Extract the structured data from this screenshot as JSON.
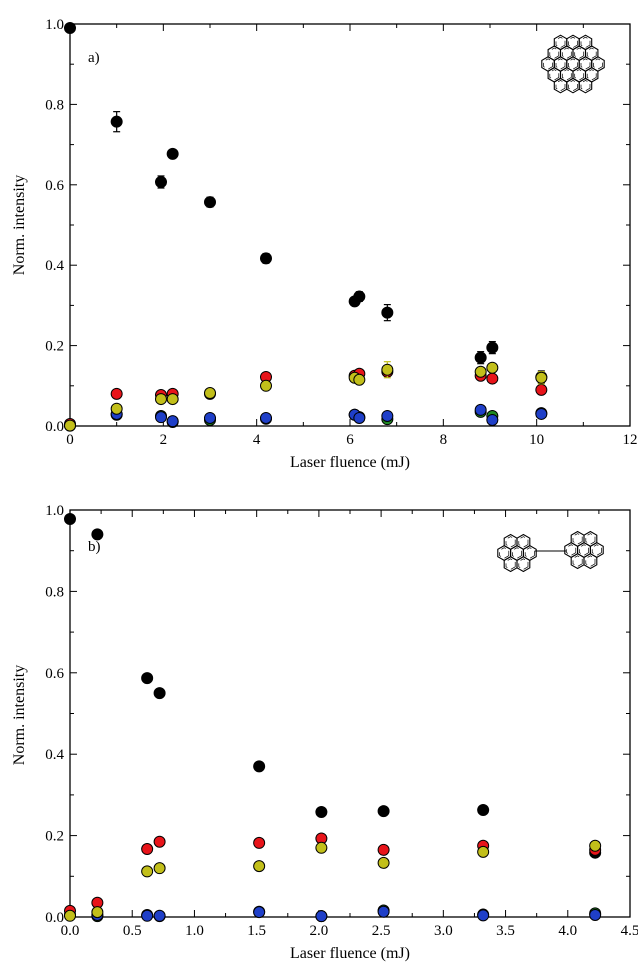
{
  "colors": {
    "black": "#000000",
    "red": "#e8141a",
    "blue": "#1f3fc8",
    "yellow": "#c2bf1a",
    "green": "#1f8a22"
  },
  "chart_data": [
    {
      "type": "scatter",
      "panel_label": "a)",
      "xlabel": "Laser fluence (mJ)",
      "ylabel": "Norm. intensity",
      "xlim": [
        0,
        12
      ],
      "ylim": [
        0,
        1.0
      ],
      "xticks": [
        "0",
        "2",
        "4",
        "6",
        "8",
        "10",
        "12"
      ],
      "yticks": [
        "0.0",
        "0.2",
        "0.4",
        "0.6",
        "0.8",
        "1.0"
      ],
      "grid": false,
      "legend": "none",
      "inset": "molecular structure drawing (top-right)",
      "series": [
        {
          "color": "black",
          "points": [
            [
              0,
              0.99
            ],
            [
              1.0,
              0.757
            ],
            [
              1.95,
              0.607
            ],
            [
              2.2,
              0.677
            ],
            [
              3.0,
              0.557
            ],
            [
              4.2,
              0.417
            ],
            [
              6.1,
              0.31
            ],
            [
              6.2,
              0.322
            ],
            [
              6.8,
              0.282
            ],
            [
              8.8,
              0.17
            ],
            [
              9.05,
              0.195
            ],
            [
              10.1,
              0.122
            ]
          ],
          "errors": [
            0,
            0.025,
            0.015,
            0,
            0.012,
            0.012,
            0,
            0.012,
            0.02,
            0.015,
            0.015,
            0.015
          ]
        },
        {
          "color": "red",
          "points": [
            [
              0,
              0.005
            ],
            [
              1.0,
              0.08
            ],
            [
              1.95,
              0.077
            ],
            [
              2.2,
              0.08
            ],
            [
              3.0,
              0.08
            ],
            [
              4.2,
              0.122
            ],
            [
              6.1,
              0.125
            ],
            [
              6.2,
              0.13
            ],
            [
              6.8,
              0.135
            ],
            [
              8.8,
              0.125
            ],
            [
              9.05,
              0.118
            ],
            [
              10.1,
              0.09
            ]
          ],
          "errors": [
            0,
            0,
            0,
            0,
            0,
            0,
            0,
            0,
            0,
            0.01,
            0.01,
            0
          ]
        },
        {
          "color": "blue",
          "points": [
            [
              0,
              0.002
            ],
            [
              1.0,
              0.03
            ],
            [
              1.95,
              0.022
            ],
            [
              2.2,
              0.012
            ],
            [
              3.0,
              0.02
            ],
            [
              4.2,
              0.02
            ],
            [
              6.1,
              0.028
            ],
            [
              6.2,
              0.02
            ],
            [
              6.8,
              0.025
            ],
            [
              8.8,
              0.04
            ],
            [
              9.05,
              0.015
            ],
            [
              10.1,
              0.03
            ]
          ],
          "errors": [
            0,
            0,
            0,
            0,
            0,
            0,
            0,
            0,
            0,
            0.01,
            0,
            0
          ]
        },
        {
          "color": "yellow",
          "points": [
            [
              0,
              0.001
            ],
            [
              1.0,
              0.043
            ],
            [
              1.95,
              0.067
            ],
            [
              2.2,
              0.067
            ],
            [
              3.0,
              0.082
            ],
            [
              4.2,
              0.1
            ],
            [
              6.1,
              0.12
            ],
            [
              6.2,
              0.115
            ],
            [
              6.8,
              0.14
            ],
            [
              8.8,
              0.135
            ],
            [
              9.05,
              0.145
            ],
            [
              10.1,
              0.12
            ]
          ],
          "errors": [
            0,
            0,
            0,
            0,
            0,
            0,
            0,
            0,
            0.02,
            0.01,
            0,
            0.015
          ]
        },
        {
          "color": "green",
          "points": [
            [
              0,
              0.001
            ],
            [
              1.0,
              0.028
            ],
            [
              1.95,
              0.025
            ],
            [
              2.2,
              0.01
            ],
            [
              3.0,
              0.015
            ],
            [
              4.2,
              0.018
            ],
            [
              6.1,
              0.028
            ],
            [
              6.2,
              0.022
            ],
            [
              6.8,
              0.017
            ],
            [
              8.8,
              0.035
            ],
            [
              9.05,
              0.025
            ],
            [
              10.1,
              0.032
            ]
          ],
          "errors": [
            0,
            0,
            0,
            0,
            0,
            0,
            0,
            0,
            0,
            0,
            0,
            0
          ]
        }
      ]
    },
    {
      "type": "scatter",
      "panel_label": "b)",
      "xlabel": "Laser fluence (mJ)",
      "ylabel": "Norm. intensity",
      "xlim": [
        0,
        4.5
      ],
      "ylim": [
        0,
        1.0
      ],
      "xticks": [
        "0.0",
        "0.5",
        "1.0",
        "1.5",
        "2.0",
        "2.5",
        "3.0",
        "3.5",
        "4.0",
        "4.5"
      ],
      "yticks": [
        "0.0",
        "0.2",
        "0.4",
        "0.6",
        "0.8",
        "1.0"
      ],
      "grid": false,
      "legend": "none",
      "inset": "molecular structure drawing (top-right)",
      "series": [
        {
          "color": "black",
          "points": [
            [
              0.0,
              0.978
            ],
            [
              0.22,
              0.94
            ],
            [
              0.62,
              0.587
            ],
            [
              0.72,
              0.55
            ],
            [
              1.52,
              0.37
            ],
            [
              2.02,
              0.258
            ],
            [
              2.52,
              0.26
            ],
            [
              3.32,
              0.263
            ],
            [
              4.22,
              0.158
            ]
          ]
        },
        {
          "color": "red",
          "points": [
            [
              0.0,
              0.015
            ],
            [
              0.22,
              0.035
            ],
            [
              0.62,
              0.167
            ],
            [
              0.72,
              0.185
            ],
            [
              1.52,
              0.182
            ],
            [
              2.02,
              0.193
            ],
            [
              2.52,
              0.165
            ],
            [
              3.32,
              0.175
            ],
            [
              4.22,
              0.165
            ]
          ]
        },
        {
          "color": "blue",
          "points": [
            [
              0.0,
              0.005
            ],
            [
              0.22,
              0.005
            ],
            [
              0.62,
              0.003
            ],
            [
              0.72,
              0.003
            ],
            [
              1.52,
              0.012
            ],
            [
              2.02,
              0.002
            ],
            [
              2.52,
              0.013
            ],
            [
              3.32,
              0.004
            ],
            [
              4.22,
              0.005
            ]
          ]
        },
        {
          "color": "yellow",
          "points": [
            [
              0.0,
              0.003
            ],
            [
              0.22,
              0.012
            ],
            [
              0.62,
              0.112
            ],
            [
              0.72,
              0.12
            ],
            [
              1.52,
              0.125
            ],
            [
              2.02,
              0.17
            ],
            [
              2.52,
              0.133
            ],
            [
              3.32,
              0.16
            ],
            [
              4.22,
              0.175
            ]
          ]
        },
        {
          "color": "green",
          "points": [
            [
              0.0,
              0.005
            ],
            [
              0.22,
              0.002
            ],
            [
              0.62,
              0.005
            ],
            [
              0.72,
              0.002
            ],
            [
              1.52,
              0.013
            ],
            [
              2.02,
              0.002
            ],
            [
              2.52,
              0.016
            ],
            [
              3.32,
              0.006
            ],
            [
              4.22,
              0.009
            ]
          ]
        }
      ]
    }
  ]
}
